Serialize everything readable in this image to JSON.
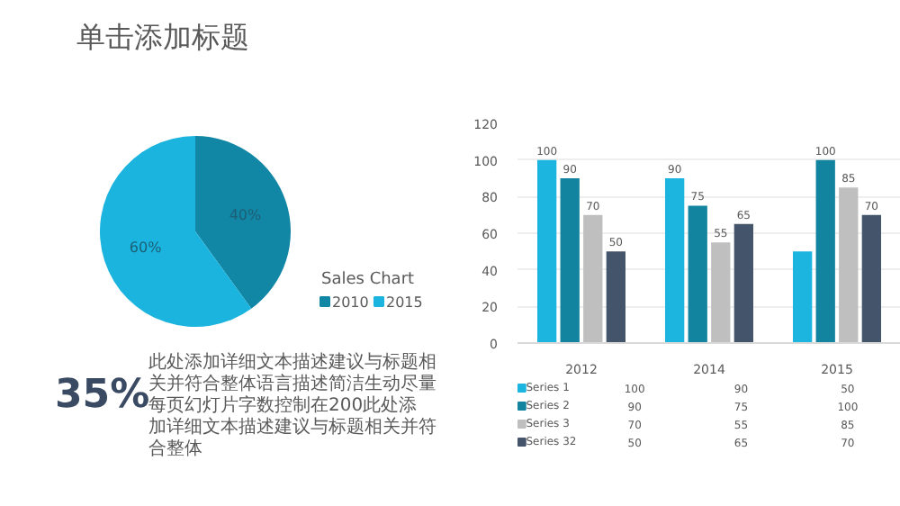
{
  "chart_data": [
    {
      "type": "other",
      "title": "单击添加标题",
      "annotations": [
        "35%",
        "此处添加详细文本描述建议与标题相关并符合整体语言描述简洁生动尽量每页幻灯片字数控制在200此处添加详细文本描述建议与标题相关并符合整体"
      ]
    },
    {
      "type": "pie",
      "title": "Sales Chart",
      "categories": [
        "2010",
        "2015"
      ],
      "values": [
        40,
        60
      ],
      "colors": [
        "#1286a5",
        "#1ab4de"
      ],
      "value_labels": [
        "40%",
        "60%"
      ],
      "legend": "right"
    },
    {
      "type": "bar",
      "categories": [
        "2012",
        "2014",
        "2015"
      ],
      "ylim": [
        0,
        120
      ],
      "yticks": [
        0,
        20,
        40,
        60,
        80,
        100,
        120
      ],
      "grid": "y",
      "legend": "bottom",
      "annotations": [
        "100",
        "90",
        "50",
        "90",
        "75",
        "100",
        "70",
        "55",
        "85",
        "50",
        "65",
        "70"
      ],
      "series": [
        {
          "name": "Series 1",
          "color": "#1cb5e0",
          "values": [
            100,
            90,
            50
          ],
          "value_labels": [
            "100",
            "90",
            null
          ]
        },
        {
          "name": "Series 2",
          "color": "#12849f",
          "values": [
            90,
            75,
            100
          ],
          "value_labels": [
            "90",
            "75",
            "100"
          ]
        },
        {
          "name": "Series 3",
          "color": "#bfbfbf",
          "values": [
            70,
            55,
            85
          ],
          "value_labels": [
            "70",
            "55",
            "85"
          ]
        },
        {
          "name": "Series 32",
          "color": "#44546a",
          "values": [
            50,
            65,
            70
          ],
          "value_labels": [
            "50",
            "65",
            "70"
          ]
        }
      ]
    }
  ]
}
